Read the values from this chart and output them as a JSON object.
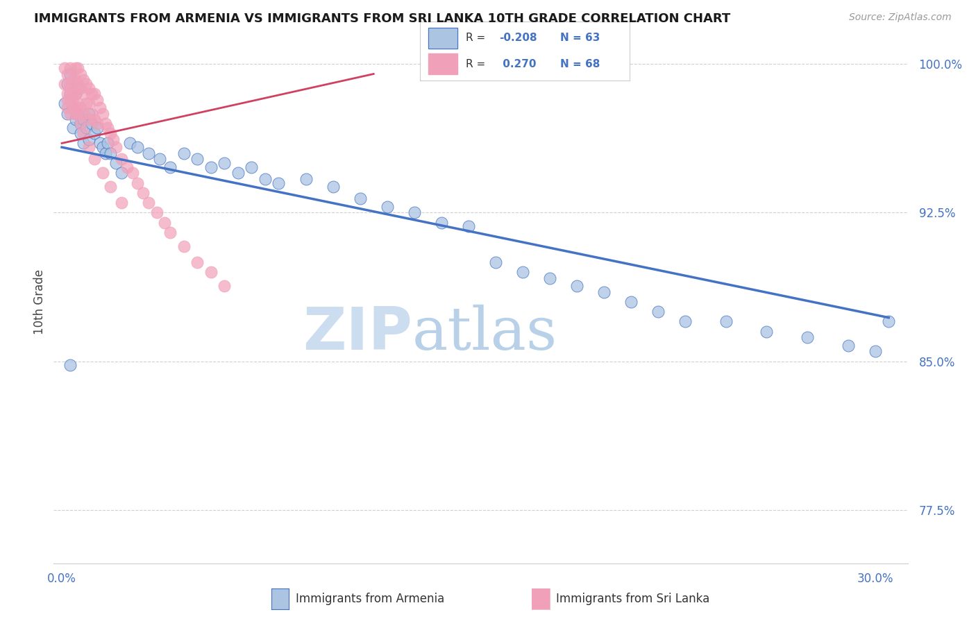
{
  "title": "IMMIGRANTS FROM ARMENIA VS IMMIGRANTS FROM SRI LANKA 10TH GRADE CORRELATION CHART",
  "source": "Source: ZipAtlas.com",
  "ylabel": "10th Grade",
  "ylim": [
    0.748,
    1.012
  ],
  "xlim": [
    -0.003,
    0.312
  ],
  "yticks": [
    0.775,
    0.85,
    0.925,
    1.0
  ],
  "ytick_labels": [
    "77.5%",
    "85.0%",
    "92.5%",
    "100.0%"
  ],
  "xticks": [
    0.0,
    0.05,
    0.1,
    0.15,
    0.2,
    0.25,
    0.3
  ],
  "color_armenia": "#aac4e2",
  "color_srilanka": "#f0a0b8",
  "line_color_blue": "#4472c4",
  "line_color_pink": "#d04060",
  "watermark_color": "#ccddf0",
  "blue_scatter_x": [
    0.001,
    0.002,
    0.002,
    0.003,
    0.003,
    0.004,
    0.004,
    0.005,
    0.005,
    0.006,
    0.006,
    0.007,
    0.007,
    0.008,
    0.008,
    0.009,
    0.01,
    0.01,
    0.011,
    0.012,
    0.013,
    0.014,
    0.015,
    0.016,
    0.017,
    0.018,
    0.02,
    0.022,
    0.025,
    0.028,
    0.032,
    0.036,
    0.04,
    0.045,
    0.05,
    0.055,
    0.06,
    0.065,
    0.07,
    0.075,
    0.08,
    0.09,
    0.1,
    0.11,
    0.12,
    0.13,
    0.14,
    0.15,
    0.16,
    0.17,
    0.18,
    0.19,
    0.2,
    0.21,
    0.22,
    0.23,
    0.245,
    0.26,
    0.275,
    0.29,
    0.3,
    0.305,
    0.003
  ],
  "blue_scatter_y": [
    0.98,
    0.975,
    0.99,
    0.985,
    0.995,
    0.978,
    0.968,
    0.985,
    0.972,
    0.975,
    0.988,
    0.97,
    0.965,
    0.972,
    0.96,
    0.968,
    0.975,
    0.962,
    0.97,
    0.965,
    0.968,
    0.96,
    0.958,
    0.955,
    0.96,
    0.955,
    0.95,
    0.945,
    0.96,
    0.958,
    0.955,
    0.952,
    0.948,
    0.955,
    0.952,
    0.948,
    0.95,
    0.945,
    0.948,
    0.942,
    0.94,
    0.942,
    0.938,
    0.932,
    0.928,
    0.925,
    0.92,
    0.918,
    0.9,
    0.895,
    0.892,
    0.888,
    0.885,
    0.88,
    0.875,
    0.87,
    0.87,
    0.865,
    0.862,
    0.858,
    0.855,
    0.87,
    0.848
  ],
  "pink_scatter_x": [
    0.001,
    0.001,
    0.002,
    0.002,
    0.002,
    0.003,
    0.003,
    0.003,
    0.003,
    0.004,
    0.004,
    0.004,
    0.005,
    0.005,
    0.005,
    0.005,
    0.006,
    0.006,
    0.006,
    0.007,
    0.007,
    0.007,
    0.008,
    0.008,
    0.008,
    0.009,
    0.009,
    0.01,
    0.01,
    0.01,
    0.011,
    0.011,
    0.012,
    0.012,
    0.013,
    0.013,
    0.014,
    0.015,
    0.016,
    0.017,
    0.018,
    0.019,
    0.02,
    0.022,
    0.024,
    0.026,
    0.028,
    0.03,
    0.032,
    0.035,
    0.038,
    0.04,
    0.045,
    0.05,
    0.055,
    0.06,
    0.002,
    0.003,
    0.004,
    0.005,
    0.006,
    0.007,
    0.008,
    0.01,
    0.012,
    0.015,
    0.018,
    0.022
  ],
  "pink_scatter_y": [
    0.998,
    0.99,
    0.995,
    0.985,
    0.978,
    0.998,
    0.99,
    0.982,
    0.975,
    0.992,
    0.985,
    0.978,
    0.998,
    0.992,
    0.985,
    0.975,
    0.998,
    0.99,
    0.98,
    0.995,
    0.988,
    0.978,
    0.992,
    0.985,
    0.975,
    0.99,
    0.98,
    0.988,
    0.98,
    0.972,
    0.985,
    0.975,
    0.985,
    0.972,
    0.982,
    0.97,
    0.978,
    0.975,
    0.97,
    0.968,
    0.965,
    0.962,
    0.958,
    0.952,
    0.948,
    0.945,
    0.94,
    0.935,
    0.93,
    0.925,
    0.92,
    0.915,
    0.908,
    0.9,
    0.895,
    0.888,
    0.982,
    0.988,
    0.982,
    0.978,
    0.975,
    0.97,
    0.965,
    0.958,
    0.952,
    0.945,
    0.938,
    0.93
  ],
  "blue_line_x": [
    0.0,
    0.305
  ],
  "blue_line_y": [
    0.958,
    0.872
  ],
  "pink_line_x": [
    0.0,
    0.115
  ],
  "pink_line_y": [
    0.96,
    0.995
  ]
}
